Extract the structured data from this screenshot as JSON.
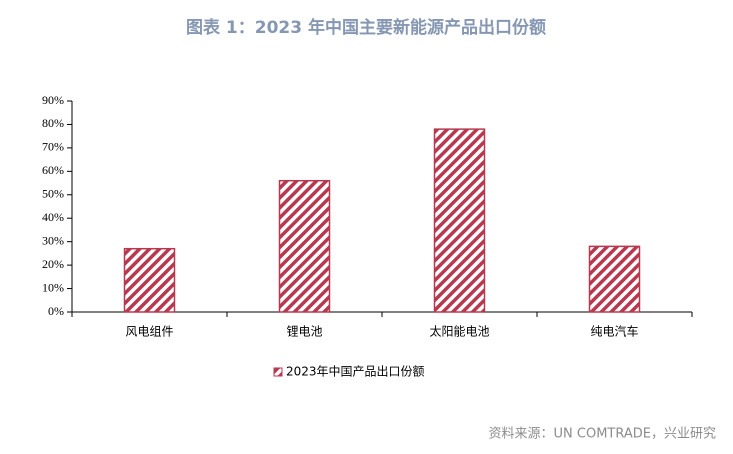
{
  "chart_data": {
    "type": "bar",
    "title": "图表 1：2023 年中国主要新能源产品出口份额",
    "categories": [
      "风电组件",
      "锂电池",
      "太阳能电池",
      "纯电汽车"
    ],
    "series": [
      {
        "name": "2023年中国产品出口份额",
        "color": "#b8394f",
        "values": [
          27,
          56,
          78,
          28
        ]
      }
    ],
    "ylim": [
      0,
      90
    ],
    "yticks": [
      {
        "value": 0,
        "label": "0%"
      },
      {
        "value": 10,
        "label": "10%"
      },
      {
        "value": 20,
        "label": "20%"
      },
      {
        "value": 30,
        "label": "30%"
      },
      {
        "value": 40,
        "label": "40%"
      },
      {
        "value": 50,
        "label": "50%"
      },
      {
        "value": 60,
        "label": "60%"
      },
      {
        "value": 70,
        "label": "70%"
      },
      {
        "value": 80,
        "label": "80%"
      },
      {
        "value": 90,
        "label": "90%"
      }
    ],
    "grid": false,
    "legend": "bottom",
    "source": "资料来源：UN COMTRADE，兴业研究"
  }
}
